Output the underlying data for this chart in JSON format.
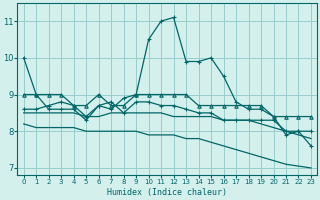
{
  "xlabel": "Humidex (Indice chaleur)",
  "xlim": [
    -0.5,
    23.5
  ],
  "ylim": [
    6.8,
    11.5
  ],
  "yticks": [
    7,
    8,
    9,
    10,
    11
  ],
  "xticks": [
    0,
    1,
    2,
    3,
    4,
    5,
    6,
    7,
    8,
    9,
    10,
    11,
    12,
    13,
    14,
    15,
    16,
    17,
    18,
    19,
    20,
    21,
    22,
    23
  ],
  "bg_color": "#d4f0ed",
  "line_color": "#006666",
  "grid_color": "#99cccc",
  "main_line": [
    10.0,
    9.0,
    8.6,
    8.6,
    8.6,
    8.3,
    8.7,
    8.6,
    8.9,
    9.0,
    10.5,
    11.0,
    11.1,
    9.9,
    9.9,
    10.0,
    9.5,
    8.8,
    8.6,
    8.6,
    8.4,
    7.9,
    8.0,
    7.6
  ],
  "upper_env": [
    9.0,
    9.0,
    9.0,
    9.0,
    8.7,
    8.7,
    9.0,
    8.7,
    8.7,
    9.0,
    9.0,
    9.0,
    9.0,
    9.0,
    8.7,
    8.7,
    8.7,
    8.7,
    8.7,
    8.7,
    8.4,
    8.4,
    8.4,
    8.4
  ],
  "lower_diag1": [
    8.5,
    8.5,
    8.5,
    8.5,
    8.5,
    8.4,
    8.4,
    8.5,
    8.5,
    8.5,
    8.5,
    8.5,
    8.4,
    8.4,
    8.4,
    8.4,
    8.3,
    8.3,
    8.3,
    8.2,
    8.1,
    8.0,
    7.9,
    7.8
  ],
  "lower_diag2": [
    8.2,
    8.1,
    8.1,
    8.1,
    8.1,
    8.0,
    8.0,
    8.0,
    8.0,
    8.0,
    7.9,
    7.9,
    7.9,
    7.8,
    7.8,
    7.7,
    7.6,
    7.5,
    7.4,
    7.3,
    7.2,
    7.1,
    7.05,
    7.0
  ],
  "inner_env": [
    8.6,
    8.6,
    8.7,
    8.8,
    8.7,
    8.4,
    8.7,
    8.8,
    8.5,
    8.8,
    8.8,
    8.7,
    8.7,
    8.6,
    8.5,
    8.5,
    8.3,
    8.3,
    8.3,
    8.3,
    8.3,
    8.0,
    8.0,
    8.0
  ]
}
